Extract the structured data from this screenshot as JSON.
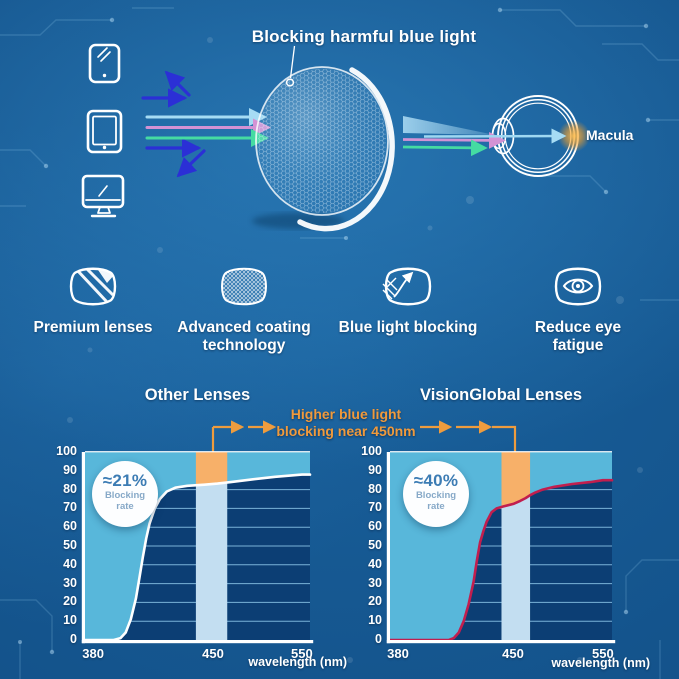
{
  "hero": {
    "title": "Blocking harmful blue light",
    "macula_label": "Macula",
    "colors": {
      "ray_reflected": "#2b2fd6",
      "ray_cyan": "#a6dcf4",
      "ray_pink": "#d392d4",
      "ray_green": "#45dba2",
      "macula_glow": "#f5a028"
    }
  },
  "features": {
    "items": [
      {
        "icon": "premium-lens-icon",
        "label": "Premium lenses"
      },
      {
        "icon": "coating-lens-icon",
        "label": "Advanced coating technology"
      },
      {
        "icon": "blue-light-blocking-icon",
        "label": "Blue light blocking"
      },
      {
        "icon": "eye-fatigue-icon",
        "label": "Reduce eye fatigue"
      }
    ]
  },
  "annotation": {
    "line1": "Higher blue light",
    "line2": "blocking near 450nm",
    "color": "#f09a3c"
  },
  "chart_data": [
    {
      "type": "area",
      "title": "Other Lenses",
      "xlabel": "wavelength (nm)",
      "badge": {
        "value": "≈21%",
        "line1": "Blocking",
        "line2": "rate"
      },
      "x_ticks": [
        380,
        450,
        550
      ],
      "y_ticks": [
        0,
        10,
        20,
        30,
        40,
        50,
        60,
        70,
        80,
        90,
        100
      ],
      "ylim": [
        0,
        100
      ],
      "grid": true,
      "x_axis_anchors": [
        {
          "nm": 380,
          "f": 0.036
        },
        {
          "nm": 450,
          "f": 0.569
        },
        {
          "nm": 550,
          "f": 0.964
        }
      ],
      "highlight_band_nm": [
        440,
        466
      ],
      "series": [
        {
          "name": "blocking rate (%)",
          "color": "#ffffff",
          "points": [
            [
              380,
              0
            ],
            [
              392,
              0
            ],
            [
              396,
              1
            ],
            [
              399,
              4
            ],
            [
              402,
              11
            ],
            [
              405,
              22
            ],
            [
              407,
              33
            ],
            [
              409,
              44
            ],
            [
              411,
              54
            ],
            [
              413,
              62
            ],
            [
              416,
              70
            ],
            [
              419,
              75
            ],
            [
              423,
              79
            ],
            [
              428,
              81
            ],
            [
              435,
              82
            ],
            [
              445,
              82.6
            ],
            [
              455,
              83.2
            ],
            [
              470,
              84
            ],
            [
              495,
              85.5
            ],
            [
              520,
              86.8
            ],
            [
              550,
              88
            ]
          ]
        }
      ],
      "colors": {
        "plot_bg": "#0c3e74",
        "gridline": "#86bfe4",
        "fill_above": "#58b7da",
        "band_below": "#c3def1",
        "band_above": "#f7b069"
      }
    },
    {
      "type": "area",
      "title": "VisionGlobal Lenses",
      "xlabel": "wavelength (nm)",
      "badge": {
        "value": "≈40%",
        "line1": "Blocking",
        "line2": "rate"
      },
      "x_ticks": [
        380,
        450,
        550
      ],
      "y_ticks": [
        0,
        10,
        20,
        30,
        40,
        50,
        60,
        70,
        80,
        90,
        100
      ],
      "ylim": [
        0,
        100
      ],
      "grid": true,
      "x_axis_anchors": [
        {
          "nm": 380,
          "f": 0.036
        },
        {
          "nm": 450,
          "f": 0.554
        },
        {
          "nm": 550,
          "f": 0.959
        }
      ],
      "highlight_band_nm": [
        443,
        469
      ],
      "series": [
        {
          "name": "blocking rate (%)",
          "color": "#c11e4e",
          "points": [
            [
              380,
              0
            ],
            [
              411,
              0
            ],
            [
              414,
              1
            ],
            [
              417,
              4
            ],
            [
              420,
              10
            ],
            [
              423,
              19
            ],
            [
              426,
              31
            ],
            [
              428,
              42
            ],
            [
              430,
              52
            ],
            [
              432,
              58
            ],
            [
              434,
              63
            ],
            [
              437,
              68
            ],
            [
              440,
              70
            ],
            [
              444,
              71
            ],
            [
              451,
              72.5
            ],
            [
              458,
              74
            ],
            [
              464,
              75.5
            ],
            [
              469,
              77
            ],
            [
              475,
              78.5
            ],
            [
              483,
              80
            ],
            [
              496,
              81.5
            ],
            [
              516,
              83
            ],
            [
              536,
              84
            ],
            [
              550,
              85
            ]
          ]
        }
      ],
      "colors": {
        "plot_bg": "#0c3e74",
        "gridline": "#86bfe4",
        "fill_above": "#58b7da",
        "band_below": "#c3def1",
        "band_above": "#f7b069"
      }
    }
  ]
}
